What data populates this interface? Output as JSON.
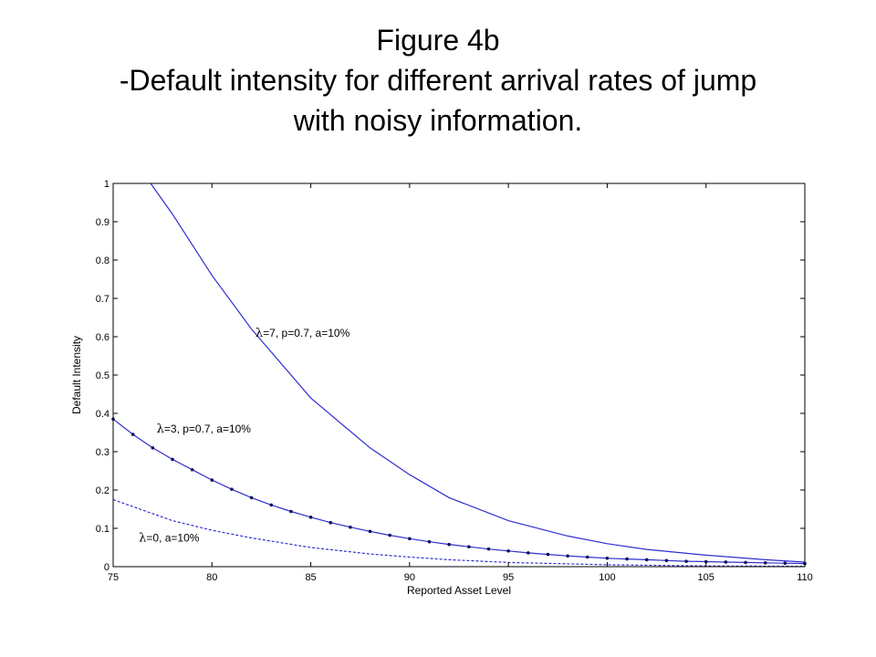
{
  "title": {
    "line1": "Figure 4b",
    "line2": "-Default intensity for different arrival rates of jump",
    "line3": "with noisy information."
  },
  "chart_data": {
    "type": "line",
    "xlabel": "Reported Asset Level",
    "ylabel": "Default Intensity",
    "xlim": [
      75,
      110
    ],
    "ylim": [
      0,
      1
    ],
    "xticks": [
      75,
      80,
      85,
      90,
      95,
      100,
      105,
      110
    ],
    "yticks": [
      0,
      0.1,
      0.2,
      0.3,
      0.4,
      0.5,
      0.6,
      0.7,
      0.8,
      0.9,
      1
    ],
    "ytick_labels": [
      "0",
      "0.1",
      "0.2",
      "0.3",
      "0.4",
      "0.5",
      "0.6",
      "0.7",
      "0.8",
      "0.9",
      "1"
    ],
    "grid": false,
    "series": [
      {
        "name": "λ=7, p=0.7, a=10%",
        "label_symbol": "λ",
        "label_rest": "=7, p=0.7, a=10%",
        "style": "solid",
        "color": "#2f2fd0",
        "x": [
          76.9,
          78,
          80,
          82,
          85,
          88,
          90,
          92,
          95,
          98,
          100,
          102,
          105,
          108,
          110
        ],
        "y": [
          1.0,
          0.92,
          0.76,
          0.62,
          0.44,
          0.31,
          0.24,
          0.18,
          0.12,
          0.08,
          0.06,
          0.045,
          0.03,
          0.018,
          0.012
        ]
      },
      {
        "name": "λ=3, p=0.7, a=10%",
        "label_symbol": "λ",
        "label_rest": "=3, p=0.7, a=10%",
        "style": "solid-dots",
        "color": "#2f2fd0",
        "x": [
          75,
          76,
          77,
          78,
          79,
          80,
          81,
          82,
          83,
          84,
          85,
          86,
          87,
          88,
          89,
          90,
          91,
          92,
          93,
          94,
          95,
          96,
          97,
          98,
          99,
          100,
          101,
          102,
          103,
          104,
          105,
          106,
          107,
          108,
          109,
          110
        ],
        "y": [
          0.385,
          0.345,
          0.31,
          0.28,
          0.253,
          0.226,
          0.202,
          0.18,
          0.161,
          0.144,
          0.129,
          0.115,
          0.103,
          0.092,
          0.082,
          0.073,
          0.065,
          0.058,
          0.052,
          0.046,
          0.041,
          0.036,
          0.032,
          0.028,
          0.025,
          0.022,
          0.02,
          0.018,
          0.016,
          0.014,
          0.013,
          0.012,
          0.011,
          0.01,
          0.009,
          0.008
        ]
      },
      {
        "name": "λ=0, a=10%",
        "label_symbol": "λ",
        "label_rest": "=0, a=10%",
        "style": "dashed",
        "color": "#2f2fd0",
        "x": [
          75,
          78,
          80,
          82,
          85,
          88,
          90,
          92,
          95,
          100,
          105,
          110
        ],
        "y": [
          0.175,
          0.12,
          0.095,
          0.075,
          0.05,
          0.033,
          0.025,
          0.018,
          0.011,
          0.005,
          0.002,
          0.001
        ]
      }
    ],
    "annotations": [
      {
        "series": 0,
        "x": 82.2,
        "y": 0.6
      },
      {
        "series": 1,
        "x": 77.2,
        "y": 0.35
      },
      {
        "series": 2,
        "x": 76.3,
        "y": 0.065
      }
    ]
  }
}
